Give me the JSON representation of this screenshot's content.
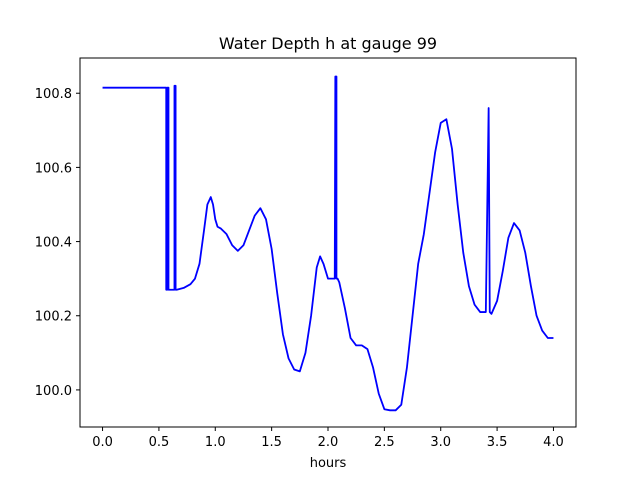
{
  "chart_data": {
    "type": "line",
    "title": "Water Depth h at gauge 99",
    "xlabel": "hours",
    "ylabel": "",
    "xlim": [
      -0.2,
      4.2
    ],
    "ylim": [
      99.9,
      100.895
    ],
    "xticks": [
      0.0,
      0.5,
      1.0,
      1.5,
      2.0,
      2.5,
      3.0,
      3.5,
      4.0
    ],
    "xtick_labels": [
      "0.0",
      "0.5",
      "1.0",
      "1.5",
      "2.0",
      "2.5",
      "3.0",
      "3.5",
      "4.0"
    ],
    "yticks": [
      100.0,
      100.2,
      100.4,
      100.6,
      100.8
    ],
    "ytick_labels": [
      "100.0",
      "100.2",
      "100.4",
      "100.6",
      "100.8"
    ],
    "grid": false,
    "series": [
      {
        "color": "#0000ff",
        "x": [
          0.0,
          0.565,
          0.565,
          0.575,
          0.575,
          0.585,
          0.585,
          0.638,
          0.638,
          0.648,
          0.648,
          0.658,
          0.658,
          0.72,
          0.78,
          0.82,
          0.86,
          0.9,
          0.93,
          0.96,
          0.98,
          1.0,
          1.02,
          1.05,
          1.1,
          1.15,
          1.2,
          1.25,
          1.3,
          1.35,
          1.4,
          1.45,
          1.5,
          1.55,
          1.6,
          1.65,
          1.7,
          1.75,
          1.8,
          1.85,
          1.9,
          1.93,
          1.96,
          2.0,
          2.04,
          2.06,
          2.065,
          2.075,
          2.075,
          2.085,
          2.085,
          2.1,
          2.15,
          2.2,
          2.25,
          2.3,
          2.35,
          2.4,
          2.45,
          2.5,
          2.55,
          2.6,
          2.65,
          2.7,
          2.75,
          2.8,
          2.85,
          2.9,
          2.95,
          3.0,
          3.05,
          3.1,
          3.15,
          3.2,
          3.25,
          3.3,
          3.35,
          3.4,
          3.425,
          3.425,
          3.435,
          3.435,
          3.45,
          3.5,
          3.55,
          3.6,
          3.65,
          3.7,
          3.75,
          3.8,
          3.85,
          3.9,
          3.95,
          4.0
        ],
        "y": [
          100.815,
          100.815,
          100.27,
          100.27,
          100.815,
          100.815,
          100.27,
          100.27,
          100.82,
          100.82,
          100.27,
          100.27,
          100.27,
          100.275,
          100.285,
          100.3,
          100.34,
          100.43,
          100.5,
          100.52,
          100.5,
          100.46,
          100.44,
          100.435,
          100.42,
          100.39,
          100.375,
          100.39,
          100.43,
          100.47,
          100.49,
          100.46,
          100.38,
          100.26,
          100.15,
          100.085,
          100.055,
          100.05,
          100.1,
          100.2,
          100.33,
          100.36,
          100.34,
          100.3,
          100.3,
          100.3,
          100.845,
          100.845,
          100.3,
          100.3,
          100.3,
          100.29,
          100.22,
          100.14,
          100.12,
          100.12,
          100.11,
          100.06,
          99.99,
          99.948,
          99.945,
          99.945,
          99.96,
          100.06,
          100.2,
          100.34,
          100.42,
          100.53,
          100.64,
          100.72,
          100.73,
          100.65,
          100.5,
          100.37,
          100.28,
          100.23,
          100.21,
          100.21,
          100.76,
          100.76,
          100.21,
          100.21,
          100.205,
          100.24,
          100.32,
          100.41,
          100.45,
          100.43,
          100.37,
          100.28,
          100.2,
          100.16,
          100.14,
          100.14
        ]
      }
    ]
  }
}
